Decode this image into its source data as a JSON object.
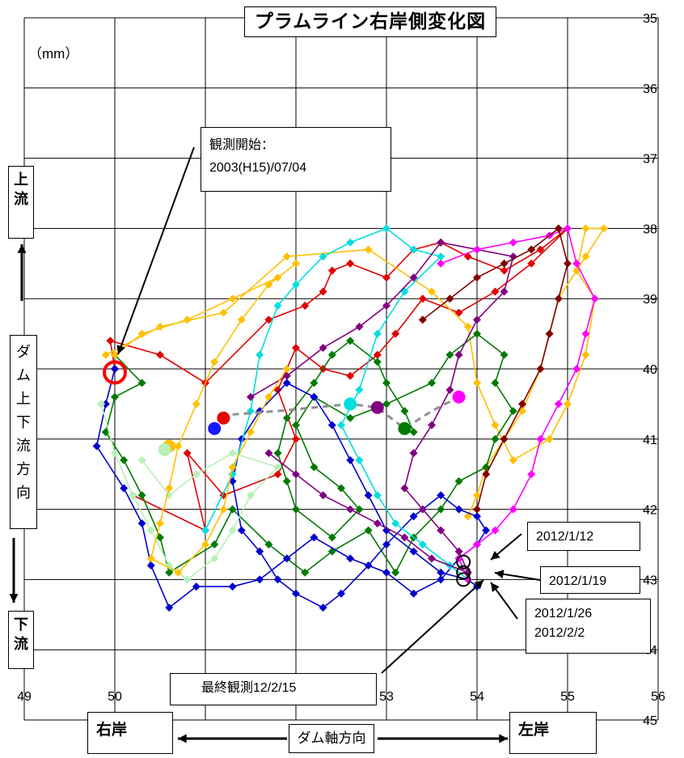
{
  "title": "プラムライン右岸側変化図",
  "unit": "（mm）",
  "annotations": {
    "start_line1": "観測開始：",
    "start_line2": "2003(H15)/07/04",
    "date_1": "2012/1/12",
    "date_2": "2012/1/19",
    "date_3": "2012/1/26",
    "date_4": "2012/2/2",
    "final": "最終観測12/2/15"
  },
  "labels": {
    "upstream_1": "上",
    "upstream_2": "流",
    "downstream_1": "下",
    "downstream_2": "流",
    "dam_updown": [
      "ダ",
      "ム",
      "上",
      "下",
      "流",
      "方",
      "向"
    ],
    "right_bank": "右岸",
    "left_bank": "左岸",
    "dam_axis": "ダム軸方向"
  },
  "chart_data": {
    "type": "line",
    "title": "プラムライン右岸側変化図",
    "xlabel": "ダム軸方向",
    "ylabel": "ダム上下流方向",
    "xlim": [
      49,
      56
    ],
    "ylim": [
      35,
      45
    ],
    "y_inverted": true,
    "x_ticks": [
      "49",
      "50",
      "51",
      "52",
      "53",
      "54",
      "55",
      "56"
    ],
    "y_ticks": [
      "35",
      "36",
      "37",
      "38",
      "39",
      "40",
      "41",
      "42",
      "43",
      "44",
      "45"
    ],
    "grid": true,
    "series": [
      {
        "color": "#e10000",
        "values": [
          [
            50.0,
            40.0
          ],
          [
            49.95,
            39.6
          ],
          [
            50.5,
            39.8
          ],
          [
            51.0,
            40.2
          ],
          [
            51.7,
            39.3
          ],
          [
            52.1,
            39.1
          ],
          [
            52.3,
            38.9
          ],
          [
            52.4,
            38.6
          ],
          [
            52.6,
            38.5
          ],
          [
            53.0,
            38.7
          ],
          [
            53.3,
            38.3
          ],
          [
            53.6,
            38.2
          ],
          [
            53.9,
            38.4
          ],
          [
            54.3,
            38.6
          ],
          [
            54.7,
            38.3
          ],
          [
            55.0,
            38.0
          ],
          [
            54.6,
            38.5
          ],
          [
            54.2,
            38.9
          ],
          [
            53.8,
            39.2
          ],
          [
            53.4,
            39.0
          ],
          [
            53.1,
            39.5
          ],
          [
            52.9,
            39.8
          ],
          [
            52.6,
            40.1
          ],
          [
            52.3,
            40.0
          ],
          [
            52.0,
            39.7
          ],
          [
            51.8,
            40.3
          ],
          [
            52.0,
            41.0
          ],
          [
            51.8,
            41.5
          ],
          [
            51.2,
            41.8
          ],
          [
            50.8,
            41.2
          ],
          [
            51.0,
            42.3
          ],
          [
            50.2,
            41.8
          ]
        ]
      },
      {
        "color": "#ffc000",
        "values": [
          [
            49.9,
            39.8
          ],
          [
            50.5,
            39.4
          ],
          [
            51.2,
            39.2
          ],
          [
            51.9,
            38.4
          ],
          [
            52.8,
            38.3
          ],
          [
            53.5,
            38.9
          ],
          [
            53.9,
            39.4
          ],
          [
            54.0,
            40.2
          ],
          [
            54.2,
            40.8
          ],
          [
            54.4,
            41.3
          ],
          [
            54.8,
            41.0
          ],
          [
            55.0,
            40.5
          ],
          [
            55.2,
            39.8
          ],
          [
            55.3,
            39.0
          ],
          [
            55.1,
            38.6
          ],
          [
            55.2,
            38.0
          ],
          [
            55.4,
            38.0
          ],
          [
            55.2,
            38.4
          ],
          [
            54.9,
            39.0
          ],
          [
            54.8,
            39.5
          ],
          [
            54.7,
            40.0
          ],
          [
            54.5,
            40.6
          ],
          [
            54.3,
            41.0
          ],
          [
            54.1,
            41.4
          ],
          [
            54.0,
            41.8
          ],
          [
            53.9,
            42.1
          ]
        ]
      },
      {
        "color": "#007a00",
        "values": [
          [
            50.0,
            39.8
          ],
          [
            50.3,
            40.2
          ],
          [
            50.0,
            40.4
          ],
          [
            49.9,
            40.9
          ],
          [
            50.1,
            41.3
          ],
          [
            50.3,
            41.8
          ],
          [
            50.5,
            42.4
          ],
          [
            50.6,
            42.9
          ],
          [
            51.1,
            42.5
          ],
          [
            51.3,
            42.0
          ],
          [
            51.7,
            42.5
          ],
          [
            52.1,
            42.9
          ],
          [
            52.4,
            42.6
          ],
          [
            52.8,
            42.3
          ],
          [
            53.1,
            42.9
          ],
          [
            53.3,
            42.4
          ],
          [
            53.6,
            42.0
          ],
          [
            53.8,
            41.6
          ],
          [
            54.1,
            41.4
          ],
          [
            54.2,
            41.0
          ],
          [
            54.4,
            40.6
          ],
          [
            54.2,
            40.2
          ],
          [
            54.3,
            39.8
          ],
          [
            54.0,
            39.5
          ],
          [
            53.7,
            39.8
          ],
          [
            53.5,
            40.2
          ],
          [
            53.0,
            40.5
          ],
          [
            52.6,
            40.7
          ],
          [
            52.2,
            40.4
          ],
          [
            52.0,
            40.8
          ],
          [
            52.2,
            41.4
          ],
          [
            52.5,
            41.7
          ],
          [
            52.7,
            42.0
          ],
          [
            52.4,
            42.4
          ],
          [
            52.0,
            42.0
          ],
          [
            51.9,
            41.6
          ],
          [
            51.8,
            41.2
          ],
          [
            51.9,
            40.7
          ],
          [
            52.2,
            40.2
          ],
          [
            52.4,
            39.8
          ],
          [
            52.6,
            39.6
          ],
          [
            52.9,
            39.9
          ],
          [
            53.0,
            40.2
          ],
          [
            53.2,
            40.6
          ],
          [
            53.3,
            40.9
          ]
        ]
      },
      {
        "color": "#0000cc",
        "values": [
          [
            50.0,
            40.0
          ],
          [
            49.9,
            40.5
          ],
          [
            49.8,
            41.1
          ],
          [
            50.1,
            41.7
          ],
          [
            50.3,
            42.2
          ],
          [
            50.4,
            42.8
          ],
          [
            50.6,
            43.4
          ],
          [
            50.9,
            43.1
          ],
          [
            51.3,
            43.1
          ],
          [
            51.6,
            43.0
          ],
          [
            51.9,
            42.7
          ],
          [
            52.2,
            42.4
          ],
          [
            52.6,
            42.7
          ],
          [
            53.0,
            42.9
          ],
          [
            53.3,
            43.2
          ],
          [
            53.6,
            43.0
          ],
          [
            53.8,
            42.7
          ],
          [
            54.0,
            42.5
          ],
          [
            54.1,
            42.3
          ],
          [
            54.0,
            42.1
          ],
          [
            53.8,
            42.0
          ],
          [
            53.6,
            41.8
          ],
          [
            53.3,
            42.1
          ],
          [
            53.0,
            42.5
          ],
          [
            52.8,
            42.8
          ],
          [
            52.5,
            43.2
          ],
          [
            52.3,
            43.4
          ],
          [
            52.0,
            43.2
          ],
          [
            51.8,
            43.0
          ],
          [
            51.6,
            42.6
          ],
          [
            51.4,
            42.3
          ],
          [
            51.3,
            41.6
          ],
          [
            51.4,
            41.0
          ],
          [
            51.6,
            40.6
          ],
          [
            51.9,
            40.2
          ],
          [
            52.2,
            40.4
          ],
          [
            52.4,
            40.8
          ],
          [
            52.6,
            41.3
          ],
          [
            52.8,
            41.8
          ],
          [
            53.0,
            42.3
          ],
          [
            53.3,
            42.6
          ],
          [
            53.6,
            42.9
          ],
          [
            53.9,
            43.0
          ],
          [
            54.0,
            43.1
          ]
        ]
      },
      {
        "color": "#00dede",
        "values": [
          [
            51.0,
            42.3
          ],
          [
            51.3,
            41.5
          ],
          [
            51.5,
            40.6
          ],
          [
            51.6,
            39.8
          ],
          [
            51.8,
            39.1
          ],
          [
            52.0,
            38.8
          ],
          [
            52.3,
            38.4
          ],
          [
            52.6,
            38.2
          ],
          [
            53.0,
            38.0
          ],
          [
            53.3,
            38.3
          ],
          [
            53.6,
            38.4
          ],
          [
            53.2,
            38.9
          ],
          [
            52.9,
            39.5
          ],
          [
            52.7,
            40.3
          ],
          [
            52.5,
            40.8
          ],
          [
            52.7,
            41.3
          ],
          [
            52.9,
            41.8
          ],
          [
            53.1,
            42.2
          ],
          [
            53.4,
            42.5
          ],
          [
            53.7,
            42.8
          ],
          [
            53.9,
            43.0
          ]
        ]
      },
      {
        "color": "#800080",
        "values": [
          [
            51.5,
            40.4
          ],
          [
            51.9,
            40.1
          ],
          [
            52.3,
            39.7
          ],
          [
            52.7,
            39.4
          ],
          [
            53.0,
            39.1
          ],
          [
            53.3,
            38.7
          ],
          [
            53.6,
            38.2
          ],
          [
            54.0,
            38.3
          ],
          [
            54.4,
            38.4
          ],
          [
            54.3,
            38.9
          ],
          [
            54.0,
            39.3
          ],
          [
            53.8,
            39.8
          ],
          [
            53.7,
            40.3
          ],
          [
            53.5,
            40.8
          ],
          [
            53.3,
            41.2
          ],
          [
            53.2,
            41.7
          ],
          [
            53.4,
            42.0
          ],
          [
            53.6,
            42.3
          ],
          [
            53.8,
            42.6
          ],
          [
            53.9,
            42.9
          ],
          [
            53.5,
            42.7
          ],
          [
            53.2,
            42.4
          ],
          [
            52.9,
            42.2
          ],
          [
            52.6,
            42.0
          ],
          [
            52.3,
            41.8
          ],
          [
            52.0,
            41.5
          ],
          [
            51.7,
            41.2
          ]
        ]
      },
      {
        "color": "#ff00ff",
        "values": [
          [
            53.6,
            38.5
          ],
          [
            54.0,
            38.3
          ],
          [
            54.4,
            38.2
          ],
          [
            54.8,
            38.1
          ],
          [
            55.0,
            38.0
          ],
          [
            55.1,
            38.5
          ],
          [
            55.3,
            39.0
          ],
          [
            55.2,
            39.5
          ],
          [
            55.1,
            40.0
          ],
          [
            54.9,
            40.5
          ],
          [
            54.7,
            41.0
          ],
          [
            54.6,
            41.5
          ],
          [
            54.4,
            42.0
          ],
          [
            54.2,
            42.3
          ],
          [
            54.0,
            42.5
          ],
          [
            53.8,
            42.7
          ],
          [
            53.9,
            43.0
          ]
        ]
      },
      {
        "color": "#800000",
        "values": [
          [
            53.4,
            39.3
          ],
          [
            53.7,
            39.0
          ],
          [
            54.0,
            38.7
          ],
          [
            54.3,
            38.5
          ],
          [
            54.6,
            38.3
          ],
          [
            54.9,
            38.0
          ],
          [
            55.0,
            38.5
          ],
          [
            54.9,
            39.0
          ],
          [
            54.8,
            39.5
          ],
          [
            54.7,
            40.0
          ],
          [
            54.5,
            40.5
          ],
          [
            54.3,
            41.0
          ],
          [
            54.1,
            41.5
          ],
          [
            54.0,
            42.0
          ]
        ]
      },
      {
        "color": "#b8f0b8",
        "values": [
          [
            49.85,
            40.5
          ],
          [
            50.0,
            41.2
          ],
          [
            50.2,
            41.8
          ],
          [
            50.4,
            42.3
          ],
          [
            50.6,
            42.8
          ],
          [
            50.8,
            43.0
          ],
          [
            51.1,
            42.7
          ],
          [
            51.3,
            42.3
          ],
          [
            51.5,
            41.8
          ],
          [
            51.8,
            41.4
          ],
          [
            51.3,
            41.2
          ],
          [
            50.9,
            41.5
          ],
          [
            50.6,
            41.8
          ],
          [
            50.3,
            41.3
          ]
        ]
      },
      {
        "color": "#ffc000",
        "values": [
          [
            50.0,
            39.8
          ],
          [
            50.3,
            39.5
          ],
          [
            50.8,
            39.3
          ],
          [
            51.3,
            39.0
          ],
          [
            51.8,
            38.7
          ],
          [
            52.0,
            38.5
          ],
          [
            51.7,
            38.8
          ],
          [
            51.4,
            39.3
          ],
          [
            51.1,
            39.9
          ],
          [
            50.9,
            40.5
          ],
          [
            50.7,
            41.1
          ],
          [
            50.6,
            41.7
          ],
          [
            50.5,
            42.2
          ],
          [
            50.4,
            42.7
          ],
          [
            50.7,
            42.9
          ],
          [
            51.0,
            42.5
          ],
          [
            51.2,
            42.0
          ],
          [
            51.3,
            41.4
          ],
          [
            51.5,
            40.9
          ],
          [
            51.7,
            40.4
          ],
          [
            51.9,
            40.0
          ]
        ]
      }
    ],
    "markers": [
      {
        "color": "#e60000",
        "x": 51.2,
        "y": 40.7
      },
      {
        "color": "#1a1aff",
        "x": 51.1,
        "y": 40.85
      },
      {
        "color": "#ffc000",
        "x": 50.6,
        "y": 41.1
      },
      {
        "color": "#b8f0b8",
        "x": 50.55,
        "y": 41.15
      },
      {
        "color": "#00dede",
        "x": 52.6,
        "y": 40.5
      },
      {
        "color": "#800080",
        "x": 52.9,
        "y": 40.55
      },
      {
        "color": "#ff00ff",
        "x": 53.8,
        "y": 40.4
      },
      {
        "color": "#007a00",
        "x": 53.2,
        "y": 40.85
      }
    ],
    "dashed_path": [
      [
        51.3,
        40.65
      ],
      [
        51.8,
        40.6
      ],
      [
        52.6,
        40.5
      ],
      [
        52.9,
        40.55
      ],
      [
        53.2,
        40.85
      ],
      [
        53.5,
        40.6
      ],
      [
        53.8,
        40.4
      ]
    ],
    "open_circles": [
      {
        "x": 50.0,
        "y": 40.05,
        "color": "#ff0000",
        "big": true
      },
      {
        "x": 53.85,
        "y": 42.75,
        "color": "#000000",
        "big": false
      },
      {
        "x": 53.85,
        "y": 42.9,
        "color": "#000000",
        "big": false
      },
      {
        "x": 53.85,
        "y": 43.0,
        "color": "#000000",
        "big": false
      }
    ]
  }
}
